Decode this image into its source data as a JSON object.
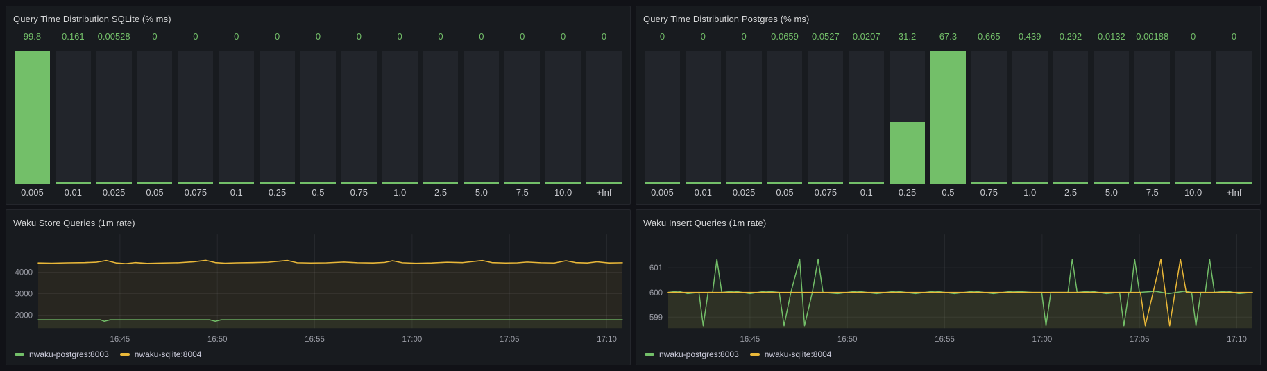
{
  "page": {
    "background": "#111217",
    "panel_background": "#181B1F",
    "panel_border": "#24262C"
  },
  "colors": {
    "green": "#73BF69",
    "yellow": "#EAB839",
    "bar_background": "#22252B",
    "value_text": "#73BF69",
    "axis_text": "#9B9DA6",
    "grid": "rgba(204,204,220,0.08)"
  },
  "chart_data": [
    {
      "type": "bar",
      "title": "Query Time Distribution SQLite (% ms)",
      "categories": [
        "0.005",
        "0.01",
        "0.025",
        "0.05",
        "0.075",
        "0.1",
        "0.25",
        "0.5",
        "0.75",
        "1.0",
        "2.5",
        "5.0",
        "7.5",
        "10.0",
        "+Inf"
      ],
      "values": [
        99.8,
        0.161,
        0.00528,
        0,
        0,
        0,
        0,
        0,
        0,
        0,
        0,
        0,
        0,
        0,
        0
      ],
      "values_display": [
        "99.8",
        "0.161",
        "0.00528",
        "0",
        "0",
        "0",
        "0",
        "0",
        "0",
        "0",
        "0",
        "0",
        "0",
        "0",
        "0"
      ],
      "ylim": [
        0,
        99.8
      ],
      "bar_color": "#73BF69"
    },
    {
      "type": "bar",
      "title": "Query Time Distribution Postgres (% ms)",
      "categories": [
        "0.005",
        "0.01",
        "0.025",
        "0.05",
        "0.075",
        "0.1",
        "0.25",
        "0.5",
        "0.75",
        "1.0",
        "2.5",
        "5.0",
        "7.5",
        "10.0",
        "+Inf"
      ],
      "values": [
        0,
        0,
        0,
        0.0659,
        0.0527,
        0.0207,
        31.2,
        67.3,
        0.665,
        0.439,
        0.292,
        0.0132,
        0.00188,
        0,
        0
      ],
      "values_display": [
        "0",
        "0",
        "0",
        "0.0659",
        "0.0527",
        "0.0207",
        "31.2",
        "67.3",
        "0.665",
        "0.439",
        "0.292",
        "0.0132",
        "0.00188",
        "0",
        "0"
      ],
      "ylim": [
        0,
        67.3
      ],
      "bar_color": "#73BF69"
    },
    {
      "type": "line",
      "title": "Waku Store Queries (1m rate)",
      "xlim": [
        0.8,
        30.8
      ],
      "ylim": [
        1400,
        5750
      ],
      "x_ticks": [
        {
          "t": 5,
          "label": "16:45"
        },
        {
          "t": 10,
          "label": "16:50"
        },
        {
          "t": 15,
          "label": "16:55"
        },
        {
          "t": 20,
          "label": "17:00"
        },
        {
          "t": 25,
          "label": "17:05"
        },
        {
          "t": 30,
          "label": "17:10"
        }
      ],
      "y_ticks": [
        {
          "v": 2000,
          "label": "2000"
        },
        {
          "v": 3000,
          "label": "3000"
        },
        {
          "v": 4000,
          "label": "4000"
        }
      ],
      "series": [
        {
          "name": "nwaku-postgres:8003",
          "color": "#73BF69",
          "points": [
            [
              0.8,
              1790
            ],
            [
              3.7,
              1790
            ],
            [
              4.0,
              1788
            ],
            [
              4.2,
              1718
            ],
            [
              4.5,
              1790
            ],
            [
              7.0,
              1790
            ],
            [
              9.6,
              1790
            ],
            [
              9.9,
              1722
            ],
            [
              10.2,
              1790
            ],
            [
              13,
              1790
            ],
            [
              17,
              1790
            ],
            [
              21,
              1788
            ],
            [
              25,
              1790
            ],
            [
              28,
              1790
            ],
            [
              30.8,
              1790
            ]
          ]
        },
        {
          "name": "nwaku-sqlite:8004",
          "color": "#EAB839",
          "points": [
            [
              0.8,
              4430
            ],
            [
              1.5,
              4420
            ],
            [
              2.3,
              4435
            ],
            [
              3.2,
              4445
            ],
            [
              3.8,
              4465
            ],
            [
              4.3,
              4540
            ],
            [
              4.8,
              4430
            ],
            [
              5.3,
              4400
            ],
            [
              5.8,
              4445
            ],
            [
              6.4,
              4410
            ],
            [
              7.2,
              4425
            ],
            [
              8.0,
              4440
            ],
            [
              8.8,
              4485
            ],
            [
              9.4,
              4550
            ],
            [
              9.9,
              4445
            ],
            [
              10.4,
              4420
            ],
            [
              11.0,
              4435
            ],
            [
              11.8,
              4445
            ],
            [
              12.6,
              4460
            ],
            [
              13.6,
              4545
            ],
            [
              14.1,
              4440
            ],
            [
              14.8,
              4425
            ],
            [
              15.6,
              4435
            ],
            [
              16.5,
              4470
            ],
            [
              17.2,
              4440
            ],
            [
              18.0,
              4430
            ],
            [
              18.6,
              4455
            ],
            [
              19.0,
              4530
            ],
            [
              19.5,
              4440
            ],
            [
              20.2,
              4415
            ],
            [
              21.0,
              4430
            ],
            [
              21.8,
              4460
            ],
            [
              22.6,
              4445
            ],
            [
              23.6,
              4540
            ],
            [
              24.1,
              4445
            ],
            [
              24.8,
              4425
            ],
            [
              25.4,
              4435
            ],
            [
              25.9,
              4470
            ],
            [
              26.6,
              4440
            ],
            [
              27.3,
              4425
            ],
            [
              27.9,
              4530
            ],
            [
              28.4,
              4445
            ],
            [
              29.0,
              4430
            ],
            [
              29.5,
              4480
            ],
            [
              30.1,
              4430
            ],
            [
              30.8,
              4440
            ]
          ]
        }
      ]
    },
    {
      "type": "line",
      "title": "Waku Insert Queries (1m rate)",
      "xlim": [
        0.8,
        30.8
      ],
      "ylim": [
        598.55,
        602.35
      ],
      "x_ticks": [
        {
          "t": 5,
          "label": "16:45"
        },
        {
          "t": 10,
          "label": "16:50"
        },
        {
          "t": 15,
          "label": "16:55"
        },
        {
          "t": 20,
          "label": "17:00"
        },
        {
          "t": 25,
          "label": "17:05"
        },
        {
          "t": 30,
          "label": "17:10"
        }
      ],
      "y_ticks": [
        {
          "v": 599,
          "label": "599"
        },
        {
          "v": 600,
          "label": "600"
        },
        {
          "v": 601,
          "label": "601"
        }
      ],
      "series": [
        {
          "name": "nwaku-postgres:8003",
          "color": "#73BF69",
          "points": [
            [
              0.8,
              600
            ],
            [
              1.3,
              600.05
            ],
            [
              1.8,
              599.95
            ],
            [
              2.38,
              600
            ],
            [
              2.6,
              598.65
            ],
            [
              2.85,
              600
            ],
            [
              3.08,
              600
            ],
            [
              3.3,
              601.35
            ],
            [
              3.55,
              600
            ],
            [
              4.2,
              600.05
            ],
            [
              5.0,
              599.95
            ],
            [
              5.8,
              600.05
            ],
            [
              6.5,
              600
            ],
            [
              6.75,
              598.65
            ],
            [
              7.1,
              600
            ],
            [
              7.55,
              601.35
            ],
            [
              7.8,
              598.65
            ],
            [
              8.2,
              600
            ],
            [
              8.5,
              601.35
            ],
            [
              8.75,
              600
            ],
            [
              9.5,
              599.95
            ],
            [
              10.5,
              600.05
            ],
            [
              11.5,
              599.95
            ],
            [
              12.5,
              600.05
            ],
            [
              13.5,
              599.95
            ],
            [
              14.5,
              600.05
            ],
            [
              15.5,
              599.95
            ],
            [
              16.5,
              600.05
            ],
            [
              17.5,
              599.95
            ],
            [
              18.5,
              600.05
            ],
            [
              19.5,
              600
            ],
            [
              19.98,
              600
            ],
            [
              20.2,
              598.65
            ],
            [
              20.45,
              600
            ],
            [
              21.33,
              600
            ],
            [
              21.55,
              601.35
            ],
            [
              21.8,
              600
            ],
            [
              22.5,
              600.05
            ],
            [
              23.3,
              599.95
            ],
            [
              23.98,
              600
            ],
            [
              24.2,
              598.65
            ],
            [
              24.45,
              600
            ],
            [
              24.55,
              600
            ],
            [
              24.75,
              601.35
            ],
            [
              25.0,
              600
            ],
            [
              25.8,
              600.05
            ],
            [
              26.5,
              599.95
            ],
            [
              27.3,
              600.05
            ],
            [
              27.68,
              600
            ],
            [
              27.9,
              598.65
            ],
            [
              28.15,
              600
            ],
            [
              28.38,
              600
            ],
            [
              28.6,
              601.35
            ],
            [
              28.85,
              600
            ],
            [
              29.5,
              600.05
            ],
            [
              30.1,
              599.95
            ],
            [
              30.8,
              600
            ]
          ]
        },
        {
          "name": "nwaku-sqlite:8004",
          "color": "#EAB839",
          "points": [
            [
              0.8,
              600
            ],
            [
              3,
              600
            ],
            [
              6,
              600
            ],
            [
              9,
              600
            ],
            [
              12,
              600
            ],
            [
              15,
              600
            ],
            [
              18,
              600
            ],
            [
              21,
              600
            ],
            [
              24,
              600
            ],
            [
              25.05,
              600
            ],
            [
              25.3,
              598.65
            ],
            [
              26.1,
              601.35
            ],
            [
              26.55,
              598.65
            ],
            [
              27.1,
              601.35
            ],
            [
              27.4,
              600
            ],
            [
              28.5,
              600
            ],
            [
              30.8,
              600
            ]
          ]
        }
      ]
    }
  ]
}
